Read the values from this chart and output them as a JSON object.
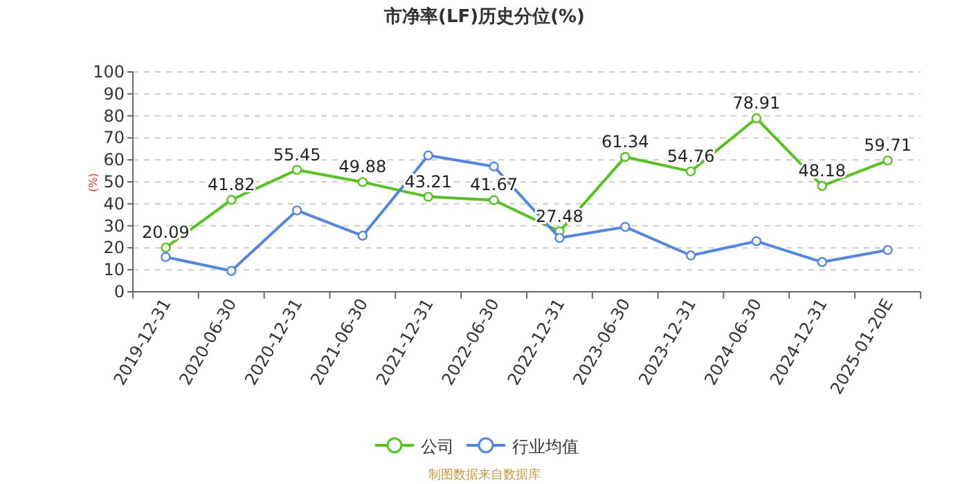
{
  "chart_data": {
    "type": "line",
    "title": "市净率(LF)历史分位(%)",
    "ylabel": "(%)",
    "categories": [
      "2019-12-31",
      "2020-06-30",
      "2020-12-31",
      "2021-06-30",
      "2021-12-31",
      "2022-06-30",
      "2022-12-31",
      "2023-06-30",
      "2023-12-31",
      "2024-06-30",
      "2024-12-31",
      "2025-01-20E"
    ],
    "series": [
      {
        "name": "公司",
        "color": "#52c41a",
        "values": [
          20.09,
          41.82,
          55.45,
          49.88,
          43.21,
          41.67,
          27.48,
          61.34,
          54.76,
          78.91,
          48.18,
          59.71
        ],
        "data_labels": true
      },
      {
        "name": "行业均值",
        "color": "#4e87e8",
        "values": [
          15.8,
          9.5,
          37,
          25.5,
          62,
          57,
          24.5,
          29.5,
          16.5,
          23,
          13.5,
          19
        ]
      }
    ],
    "ylim": [
      0,
      100
    ],
    "yticks": [
      0,
      10,
      20,
      30,
      40,
      50,
      60,
      70,
      80,
      90,
      100
    ],
    "grid": "y",
    "legend": "bottom",
    "marker": "circle",
    "annotations": [
      "制图数据来自数据库"
    ]
  }
}
